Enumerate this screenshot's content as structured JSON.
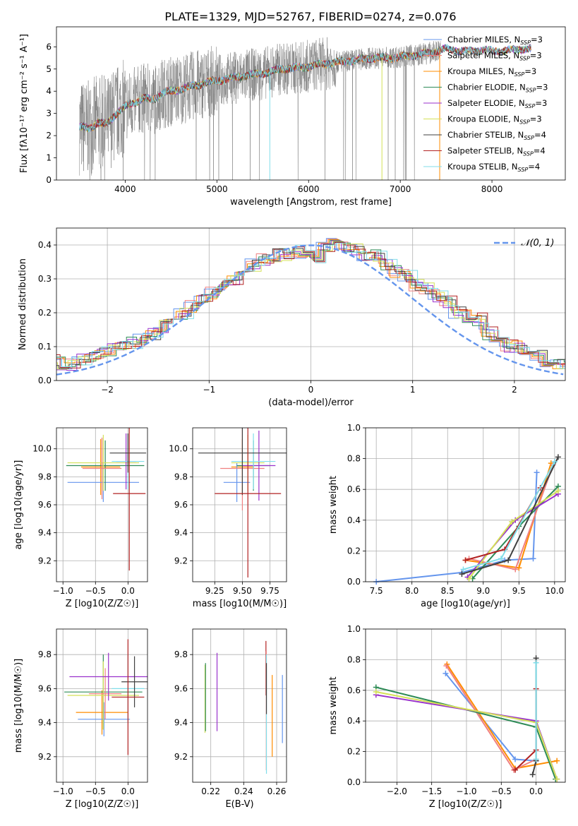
{
  "figure_title": "PLATE=1329, MJD=52767, FIBERID=0274, z=0.076",
  "chart_data": [
    {
      "id": "spectrum",
      "type": "line",
      "xlabel": "wavelength [Angstrom, rest frame]",
      "ylabel": "Flux [f_λ 10^-17 erg cm^-2 s^-1 A^-1]",
      "xlim": [
        3250,
        8800
      ],
      "ylim": [
        0,
        6.9
      ],
      "xticks": [
        4000,
        5000,
        6000,
        7000,
        8000
      ],
      "yticks": [
        0,
        1,
        2,
        3,
        4,
        5,
        6
      ],
      "grid": false,
      "legend_position": "right",
      "data_color": "#808080",
      "continuum": {
        "x": [
          3500,
          3600,
          3700,
          3800,
          3900,
          4000,
          4100,
          4200,
          4300,
          4400,
          4500,
          4700,
          4900,
          5100,
          5300,
          5500,
          5700,
          5900,
          6100,
          6300,
          6500,
          6700,
          6900,
          7100,
          7300,
          7500,
          7700,
          7900,
          8100,
          8300
        ],
        "y": [
          2.4,
          2.3,
          2.6,
          2.5,
          3.0,
          3.3,
          3.5,
          3.7,
          3.6,
          3.9,
          4.0,
          4.2,
          4.4,
          4.55,
          4.7,
          4.8,
          5.0,
          5.05,
          5.2,
          5.3,
          5.4,
          5.5,
          5.5,
          5.6,
          5.7,
          5.9,
          5.8,
          5.85,
          5.8,
          5.9
        ]
      },
      "series": [
        {
          "name": "Chabrier MILES, N_SSP=3",
          "color": "#6495ed"
        },
        {
          "name": "Salpeter MILES, N_SSP=3",
          "color": "#f08080"
        },
        {
          "name": "Kroupa MILES, N_SSP=3",
          "color": "#ff8c00"
        },
        {
          "name": "Chabrier ELODIE, N_SSP=3",
          "color": "#2e8b57"
        },
        {
          "name": "Salpeter ELODIE, N_SSP=3",
          "color": "#9932cc"
        },
        {
          "name": "Kroupa ELODIE, N_SSP=3",
          "color": "#d4e157"
        },
        {
          "name": "Chabrier STELIB, N_SSP=4",
          "color": "#404040"
        },
        {
          "name": "Salpeter STELIB, N_SSP=4",
          "color": "#b22222"
        },
        {
          "name": "Kroupa STELIB, N_SSP=4",
          "color": "#80deea"
        }
      ]
    },
    {
      "id": "residuals",
      "type": "line",
      "xlabel": "(data-model)/error",
      "ylabel": "Normed distribution",
      "xlim": [
        -2.5,
        2.5
      ],
      "ylim": [
        0,
        0.45
      ],
      "xticks": [
        -2,
        -1,
        0,
        1,
        2
      ],
      "yticks": [
        0.0,
        0.1,
        0.2,
        0.3,
        0.4
      ],
      "grid": true,
      "legend": "𝒩(0, 1)",
      "legend_position": "top-right",
      "normal_curve": {
        "mean": 0,
        "sigma": 1,
        "color": "#6495ed"
      },
      "histogram_bin_width": 0.1,
      "histogram_mean_values": [
        0.02,
        0.03,
        0.05,
        0.06,
        0.05,
        0.05,
        0.06,
        0.07,
        0.08,
        0.09,
        0.1,
        0.11,
        0.12,
        0.14,
        0.16,
        0.18,
        0.2,
        0.22,
        0.24,
        0.26,
        0.28,
        0.3,
        0.32,
        0.34,
        0.36,
        0.37,
        0.37,
        0.38,
        0.38,
        0.36,
        0.39,
        0.4,
        0.39,
        0.39,
        0.36,
        0.37,
        0.34,
        0.32,
        0.31,
        0.28,
        0.27,
        0.25,
        0.23,
        0.2,
        0.19,
        0.18,
        0.14,
        0.12,
        0.1,
        0.1,
        0.08,
        0.07,
        0.06,
        0.05,
        0.05,
        0.04,
        0.03,
        0.03
      ]
    },
    {
      "id": "age-vs-Z",
      "type": "scatter",
      "xlabel": "Z [log10(Z/Z☉)]",
      "ylabel": "age [log10(age/yr)]",
      "xlim": [
        -1.1,
        0.3
      ],
      "ylim": [
        9.05,
        10.15
      ],
      "xticks": [
        -1.0,
        -0.5,
        0.0
      ],
      "yticks": [
        9.2,
        9.4,
        9.6,
        9.8,
        10.0
      ],
      "grid": true,
      "points": [
        {
          "x": -0.42,
          "y": 9.87,
          "xerr": 0.3,
          "yerr": 0.2,
          "color": "#ff8c00"
        },
        {
          "x": -0.38,
          "y": 9.76,
          "xerr": 0.55,
          "yerr": 0.14,
          "color": "#6495ed"
        },
        {
          "x": -0.35,
          "y": 9.88,
          "xerr": 0.6,
          "yerr": 0.18,
          "color": "#2e8b57"
        },
        {
          "x": -0.38,
          "y": 9.9,
          "xerr": 0.55,
          "yerr": 0.2,
          "color": "#d4e157"
        },
        {
          "x": -0.4,
          "y": 9.86,
          "xerr": 0.3,
          "yerr": 0.22,
          "color": "#f08080"
        },
        {
          "x": -0.03,
          "y": 9.91,
          "xerr": 0.15,
          "yerr": 0.2,
          "color": "#9932cc"
        },
        {
          "x": 0.0,
          "y": 9.91,
          "xerr": 0.25,
          "yerr": 0.2,
          "color": "#80deea"
        },
        {
          "x": 0.0,
          "y": 9.97,
          "xerr": 0.28,
          "yerr": 0.14,
          "color": "#404040"
        },
        {
          "x": 0.02,
          "y": 9.68,
          "xerr": 0.25,
          "yerr": 0.55,
          "color": "#b22222"
        }
      ]
    },
    {
      "id": "age-vs-mass",
      "type": "scatter",
      "xlabel": "mass [log10(M/M☉)]",
      "ylabel": "",
      "xlim": [
        9.05,
        9.9
      ],
      "ylim": [
        9.05,
        10.15
      ],
      "xticks": [
        9.25,
        9.5,
        9.75
      ],
      "yticks": [
        9.2,
        9.4,
        9.6,
        9.8,
        10.0
      ],
      "grid": true,
      "points": [
        {
          "x": 9.5,
          "y": 9.87,
          "xerr": 0.1,
          "yerr": 0.2,
          "color": "#ff8c00"
        },
        {
          "x": 9.45,
          "y": 9.76,
          "xerr": 0.12,
          "yerr": 0.14,
          "color": "#6495ed"
        },
        {
          "x": 9.6,
          "y": 9.88,
          "xerr": 0.15,
          "yerr": 0.18,
          "color": "#2e8b57"
        },
        {
          "x": 9.55,
          "y": 9.9,
          "xerr": 0.15,
          "yerr": 0.2,
          "color": "#d4e157"
        },
        {
          "x": 9.5,
          "y": 9.86,
          "xerr": 0.2,
          "yerr": 0.3,
          "color": "#f08080"
        },
        {
          "x": 9.65,
          "y": 9.88,
          "xerr": 0.15,
          "yerr": 0.25,
          "color": "#9932cc"
        },
        {
          "x": 9.6,
          "y": 9.91,
          "xerr": 0.2,
          "yerr": 0.2,
          "color": "#80deea"
        },
        {
          "x": 9.5,
          "y": 9.97,
          "xerr": 0.4,
          "yerr": 0.3,
          "color": "#404040"
        },
        {
          "x": 9.55,
          "y": 9.68,
          "xerr": 0.3,
          "yerr": 0.6,
          "color": "#b22222"
        }
      ]
    },
    {
      "id": "mass-weight-vs-age",
      "type": "line",
      "xlabel": "age [log10(age/yr)]",
      "ylabel": "mass weight",
      "xlim": [
        7.35,
        10.15
      ],
      "ylim": [
        0,
        1
      ],
      "xticks": [
        7.5,
        8.0,
        8.5,
        9.0,
        9.5,
        10.0
      ],
      "yticks": [
        0.0,
        0.2,
        0.4,
        0.6,
        0.8,
        1.0
      ],
      "grid": true,
      "series": [
        {
          "color": "#6495ed",
          "x": [
            7.5,
            8.7,
            9.3,
            9.7,
            9.75
          ],
          "y": [
            0.0,
            0.06,
            0.14,
            0.15,
            0.71
          ]
        },
        {
          "color": "#ff8c00",
          "x": [
            8.75,
            9.5,
            9.95
          ],
          "y": [
            0.14,
            0.09,
            0.77
          ]
        },
        {
          "color": "#f08080",
          "x": [
            8.8,
            9.45,
            9.98
          ],
          "y": [
            0.15,
            0.08,
            0.76
          ]
        },
        {
          "color": "#2e8b57",
          "x": [
            8.85,
            9.5,
            10.05
          ],
          "y": [
            0.02,
            0.36,
            0.62
          ]
        },
        {
          "color": "#9932cc",
          "x": [
            8.78,
            9.45,
            10.05
          ],
          "y": [
            0.03,
            0.4,
            0.57
          ]
        },
        {
          "color": "#d4e157",
          "x": [
            8.8,
            9.4,
            10.05
          ],
          "y": [
            0.02,
            0.39,
            0.59
          ]
        },
        {
          "color": "#404040",
          "x": [
            8.7,
            9.35,
            10.05
          ],
          "y": [
            0.05,
            0.14,
            0.81
          ]
        },
        {
          "color": "#b22222",
          "x": [
            8.75,
            9.3,
            9.8
          ],
          "y": [
            0.14,
            0.21,
            0.61
          ]
        },
        {
          "color": "#80deea",
          "x": [
            8.72,
            9.25,
            10.0
          ],
          "y": [
            0.08,
            0.15,
            0.78
          ]
        }
      ]
    },
    {
      "id": "mass-vs-Z",
      "type": "scatter",
      "xlabel": "Z [log10(Z/Z☉)]",
      "ylabel": "mass [log10(M/M☉)]",
      "xlim": [
        -1.1,
        0.3
      ],
      "ylim": [
        9.05,
        9.95
      ],
      "xticks": [
        -1.0,
        -0.5,
        0.0
      ],
      "yticks": [
        9.2,
        9.4,
        9.6,
        9.8
      ],
      "grid": true,
      "points": [
        {
          "x": -0.4,
          "y": 9.46,
          "xerr": 0.4,
          "yerr": 0.13,
          "color": "#ff8c00"
        },
        {
          "x": -0.37,
          "y": 9.42,
          "xerr": 0.4,
          "yerr": 0.1,
          "color": "#6495ed"
        },
        {
          "x": -0.38,
          "y": 9.58,
          "xerr": 0.6,
          "yerr": 0.22,
          "color": "#2e8b57"
        },
        {
          "x": -0.38,
          "y": 9.56,
          "xerr": 0.55,
          "yerr": 0.2,
          "color": "#d4e157"
        },
        {
          "x": -0.35,
          "y": 9.57,
          "xerr": 0.25,
          "yerr": 0.15,
          "color": "#f08080"
        },
        {
          "x": -0.3,
          "y": 9.67,
          "xerr": 0.6,
          "yerr": 0.14,
          "color": "#9932cc"
        },
        {
          "x": 0.0,
          "y": 9.6,
          "xerr": 0.25,
          "yerr": 0.2,
          "color": "#80deea"
        },
        {
          "x": 0.1,
          "y": 9.64,
          "xerr": 0.2,
          "yerr": 0.15,
          "color": "#404040"
        },
        {
          "x": 0.0,
          "y": 9.55,
          "xerr": 0.25,
          "yerr": 0.34,
          "color": "#b22222"
        }
      ]
    },
    {
      "id": "mass-vs-EBV",
      "type": "scatter",
      "xlabel": "E(B-V)",
      "ylabel": "",
      "xlim": [
        0.209,
        0.266
      ],
      "ylim": [
        9.05,
        9.95
      ],
      "xticks": [
        0.22,
        0.24,
        0.26
      ],
      "yticks": [
        9.2,
        9.4,
        9.6,
        9.8
      ],
      "grid": true,
      "points": [
        {
          "x": 0.2165,
          "y": 9.54,
          "yerr": 0.2,
          "color": "#d4e157"
        },
        {
          "x": 0.2168,
          "y": 9.55,
          "yerr": 0.2,
          "color": "#2e8b57"
        },
        {
          "x": 0.2238,
          "y": 9.58,
          "yerr": 0.23,
          "color": "#9932cc"
        },
        {
          "x": 0.2535,
          "y": 9.72,
          "yerr": 0.16,
          "color": "#b22222"
        },
        {
          "x": 0.2537,
          "y": 9.47,
          "yerr": 0.35,
          "color": "#f08080"
        },
        {
          "x": 0.2538,
          "y": 9.45,
          "yerr": 0.35,
          "color": "#80deea"
        },
        {
          "x": 0.2538,
          "y": 9.6,
          "yerr": 0.15,
          "color": "#404040"
        },
        {
          "x": 0.2573,
          "y": 9.44,
          "yerr": 0.24,
          "color": "#ff8c00"
        },
        {
          "x": 0.2635,
          "y": 9.48,
          "yerr": 0.2,
          "color": "#6495ed"
        }
      ]
    },
    {
      "id": "mass-weight-vs-Z",
      "type": "line",
      "xlabel": "Z [log10(Z/Z☉)]",
      "ylabel": "mass weight",
      "xlim": [
        -2.45,
        0.42
      ],
      "ylim": [
        0,
        1
      ],
      "xticks": [
        -2.0,
        -1.5,
        -1.0,
        -0.5,
        0.0
      ],
      "yticks": [
        0.0,
        0.2,
        0.4,
        0.6,
        0.8,
        1.0
      ],
      "grid": true,
      "series": [
        {
          "color": "#6495ed",
          "x": [
            -1.3,
            -0.3,
            0.0
          ],
          "y": [
            0.71,
            0.15,
            0.14
          ]
        },
        {
          "color": "#ff8c00",
          "x": [
            -1.28,
            -0.3,
            0.3
          ],
          "y": [
            0.77,
            0.09,
            0.14
          ]
        },
        {
          "color": "#f08080",
          "x": [
            -1.29,
            -0.32,
            0.0
          ],
          "y": [
            0.76,
            0.08,
            0.15
          ]
        },
        {
          "color": "#2e8b57",
          "x": [
            -2.3,
            0.0,
            0.28
          ],
          "y": [
            0.62,
            0.36,
            0.02
          ]
        },
        {
          "color": "#9932cc",
          "x": [
            -2.3,
            0.0,
            0.3
          ],
          "y": [
            0.57,
            0.4,
            0.02
          ]
        },
        {
          "color": "#d4e157",
          "x": [
            -2.3,
            0.0,
            0.3
          ],
          "y": [
            0.59,
            0.39,
            0.02
          ]
        },
        {
          "color": "#404040",
          "x": [
            0.0,
            0.0,
            -0.05
          ],
          "y": [
            0.81,
            0.14,
            0.05
          ]
        },
        {
          "color": "#b22222",
          "x": [
            0.0,
            0.0,
            -0.3
          ],
          "y": [
            0.61,
            0.21,
            0.08
          ]
        },
        {
          "color": "#80deea",
          "x": [
            0.0,
            0.0
          ],
          "y": [
            0.78,
            0.15
          ]
        }
      ]
    }
  ]
}
